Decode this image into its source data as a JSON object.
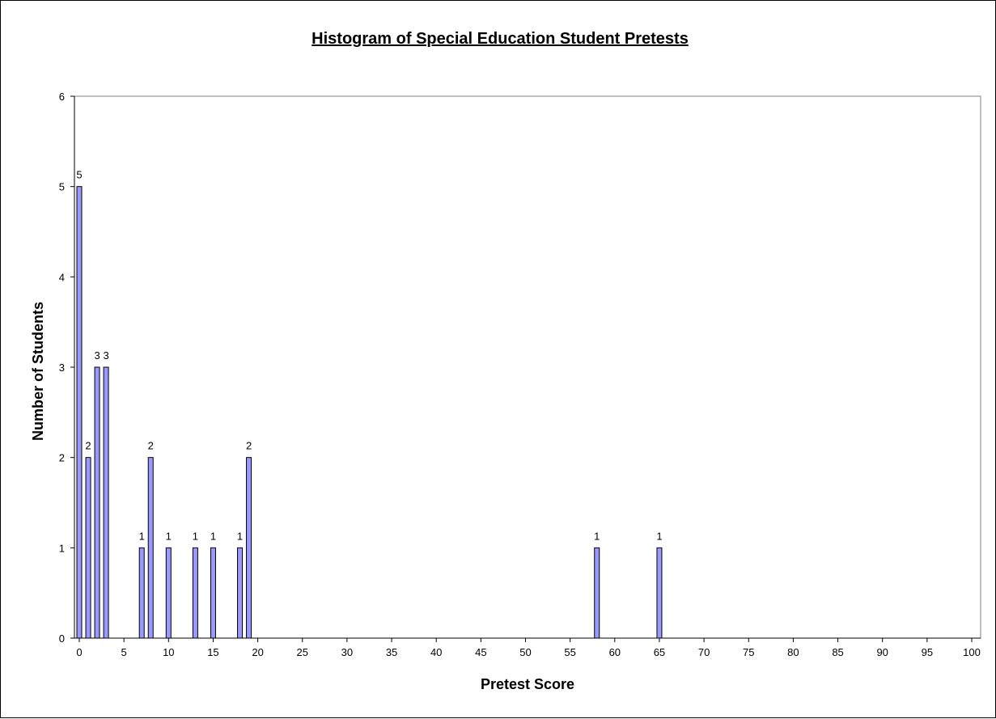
{
  "chart_data": {
    "type": "bar",
    "title": "Histogram of Special Education Student Pretests",
    "xlabel": "Pretest Score",
    "ylabel": "Number of Students",
    "xlim": [
      0,
      100
    ],
    "ylim": [
      0,
      6
    ],
    "xticks": [
      0,
      5,
      10,
      15,
      20,
      25,
      30,
      35,
      40,
      45,
      50,
      55,
      60,
      65,
      70,
      75,
      80,
      85,
      90,
      95,
      100
    ],
    "yticks": [
      0,
      1,
      2,
      3,
      4,
      5,
      6
    ],
    "grid": false,
    "bar_color": "#9999ff",
    "bar_edge_color": "#000000",
    "x": [
      0,
      1,
      2,
      3,
      7,
      8,
      10,
      13,
      15,
      18,
      19,
      58,
      65
    ],
    "values": [
      5,
      2,
      3,
      3,
      1,
      2,
      1,
      1,
      1,
      1,
      2,
      1,
      1
    ],
    "data_labels": [
      "5",
      "2",
      "3",
      "3",
      "1",
      "2",
      "1",
      "1",
      "1",
      "1",
      "2",
      "1",
      "1"
    ]
  }
}
